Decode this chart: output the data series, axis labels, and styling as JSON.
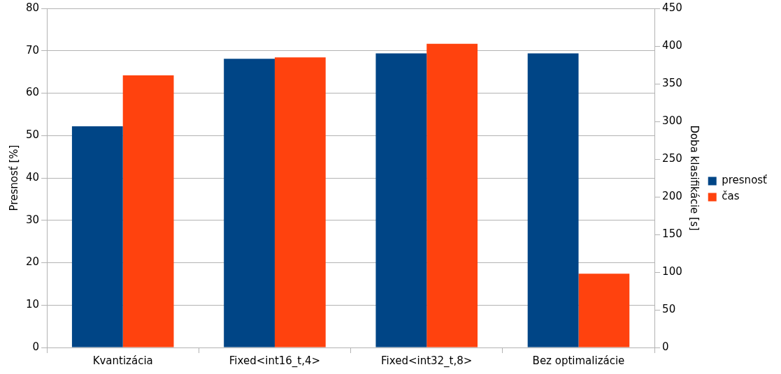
{
  "chart_data": {
    "type": "bar",
    "categories": [
      "Kvantizácia",
      "Fixed<int16_t,4>",
      "Fixed<int32_t,8>",
      "Bez optimalizácie"
    ],
    "series": [
      {
        "name": "presnosť",
        "color": "#004586",
        "values": [
          52.2,
          68.1,
          69.4,
          69.4
        ]
      },
      {
        "name": "čas",
        "color": "#ff420e",
        "values": [
          361,
          385,
          403,
          98
        ],
        "axis": "y2"
      }
    ],
    "ylabel": "Presnosť [%]",
    "y2label": "Doba klasifikácie [s]",
    "ylim": [
      0,
      80
    ],
    "yticks": [
      0,
      10,
      20,
      30,
      40,
      50,
      60,
      70,
      80
    ],
    "y2lim": [
      0,
      450
    ],
    "y2ticks": [
      0,
      50,
      100,
      150,
      200,
      250,
      300,
      350,
      400,
      450
    ],
    "grid": "y",
    "legend": "right"
  }
}
